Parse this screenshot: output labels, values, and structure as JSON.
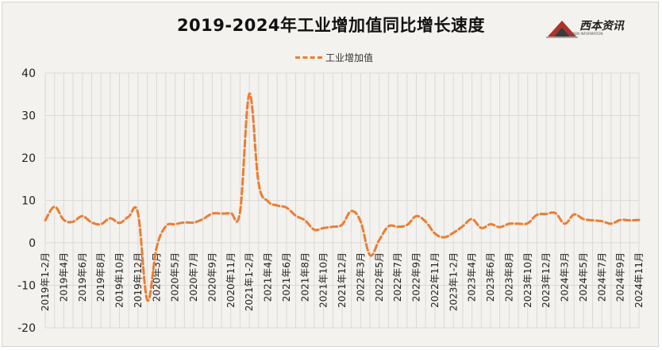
{
  "chart_data": {
    "type": "line",
    "title": "2019-2024年工业增加值同比增长速度",
    "xlabel": "",
    "ylabel": "",
    "ylim": [
      -20,
      40
    ],
    "yticks": [
      -20,
      -10,
      0,
      10,
      20,
      30,
      40
    ],
    "grid": true,
    "legend_position": "top-center",
    "logo": {
      "text": "西本资讯",
      "subtext": "XIBEN INFORMATION"
    },
    "colors": {
      "series": "#ed7d31",
      "grid": "#d9d9d9"
    },
    "x": [
      "2019年1-2月",
      "2019年3月",
      "2019年4月",
      "2019年5月",
      "2019年6月",
      "2019年7月",
      "2019年8月",
      "2019年9月",
      "2019年10月",
      "2019年11月",
      "2019年12月",
      "2020年1-2月",
      "2020年3月",
      "2020年4月",
      "2020年5月",
      "2020年6月",
      "2020年7月",
      "2020年8月",
      "2020年9月",
      "2020年10月",
      "2020年11月",
      "2020年12月",
      "2021年1-2月",
      "2021年3月",
      "2021年4月",
      "2021年5月",
      "2021年6月",
      "2021年7月",
      "2021年8月",
      "2021年9月",
      "2021年10月",
      "2021年11月",
      "2021年12月",
      "2022年1-2月",
      "2022年3月",
      "2022年4月",
      "2022年5月",
      "2022年6月",
      "2022年7月",
      "2022年8月",
      "2022年9月",
      "2022年10月",
      "2022年11月",
      "2022年12月",
      "2023年1-2月",
      "2023年3月",
      "2023年4月",
      "2023年5月",
      "2023年6月",
      "2023年7月",
      "2023年8月",
      "2023年9月",
      "2023年10月",
      "2023年11月",
      "2023年12月",
      "2024年1-2月",
      "2024年3月",
      "2024年4月",
      "2024年5月",
      "2024年6月",
      "2024年7月",
      "2024年8月",
      "2024年9月",
      "2024年10月",
      "2024年11月"
    ],
    "xtick_labels": [
      "2019年1-2月",
      "2019年4月",
      "2019年6月",
      "2019年8月",
      "2019年10月",
      "2019年12月",
      "2020年3月",
      "2020年5月",
      "2020年7月",
      "2020年9月",
      "2020年11月",
      "2021年1-2月",
      "2021年4月",
      "2021年6月",
      "2021年8月",
      "2021年10月",
      "2021年12月",
      "2022年3月",
      "2022年5月",
      "2022年7月",
      "2022年9月",
      "2022年11月",
      "2023年1-2月",
      "2023年4月",
      "2023年6月",
      "2023年8月",
      "2023年10月",
      "2023年12月",
      "2024年3月",
      "2024年5月",
      "2024年7月",
      "2024年9月",
      "2024年11月"
    ],
    "series": [
      {
        "name": "工业增加值",
        "style": "dashed",
        "values": [
          5.3,
          8.5,
          5.4,
          5.0,
          6.3,
          4.8,
          4.4,
          5.8,
          4.7,
          6.2,
          6.9,
          -13.5,
          -1.1,
          3.9,
          4.4,
          4.8,
          4.8,
          5.6,
          6.9,
          6.9,
          7.0,
          7.3,
          35.1,
          14.1,
          9.8,
          8.8,
          8.3,
          6.4,
          5.3,
          3.1,
          3.5,
          3.8,
          4.3,
          7.5,
          5.0,
          -2.9,
          0.7,
          3.9,
          3.8,
          4.2,
          6.3,
          5.0,
          2.2,
          1.3,
          2.4,
          3.9,
          5.6,
          3.5,
          4.4,
          3.7,
          4.5,
          4.5,
          4.6,
          6.6,
          6.8,
          7.0,
          4.5,
          6.7,
          5.6,
          5.3,
          5.1,
          4.5,
          5.4,
          5.3,
          5.4
        ]
      }
    ]
  }
}
